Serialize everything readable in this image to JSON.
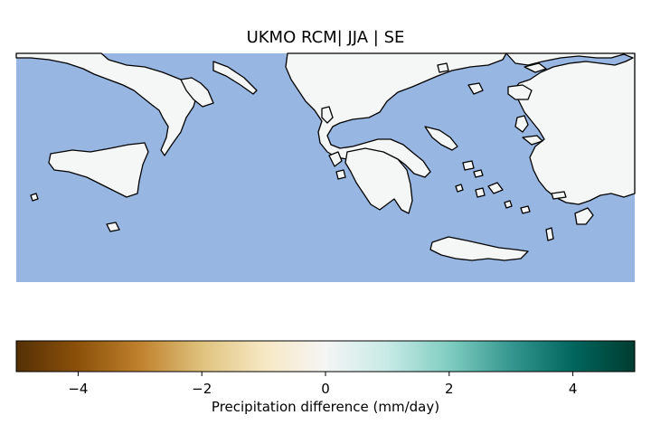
{
  "title": "UKMO RCM| JJA | SE",
  "map": {
    "region": "Southeast Europe / Eastern Mediterranean",
    "sea_color": "#97b6e2",
    "land_color": "#f4f7f6",
    "coast_color": "#000000"
  },
  "colorbar": {
    "label": "Precipitation difference (mm/day)",
    "colormap": "BrBG",
    "range": [
      -5,
      5
    ],
    "ticks": [
      {
        "value": -4,
        "label": "−4"
      },
      {
        "value": -2,
        "label": "−2"
      },
      {
        "value": 0,
        "label": "0"
      },
      {
        "value": 2,
        "label": "2"
      },
      {
        "value": 4,
        "label": "4"
      }
    ],
    "stops": [
      "#543005",
      "#8c510a",
      "#bf812d",
      "#dfc27d",
      "#f6e8c3",
      "#f5f5f5",
      "#c7eae5",
      "#80cdc1",
      "#35978f",
      "#01665e",
      "#003c30"
    ]
  }
}
